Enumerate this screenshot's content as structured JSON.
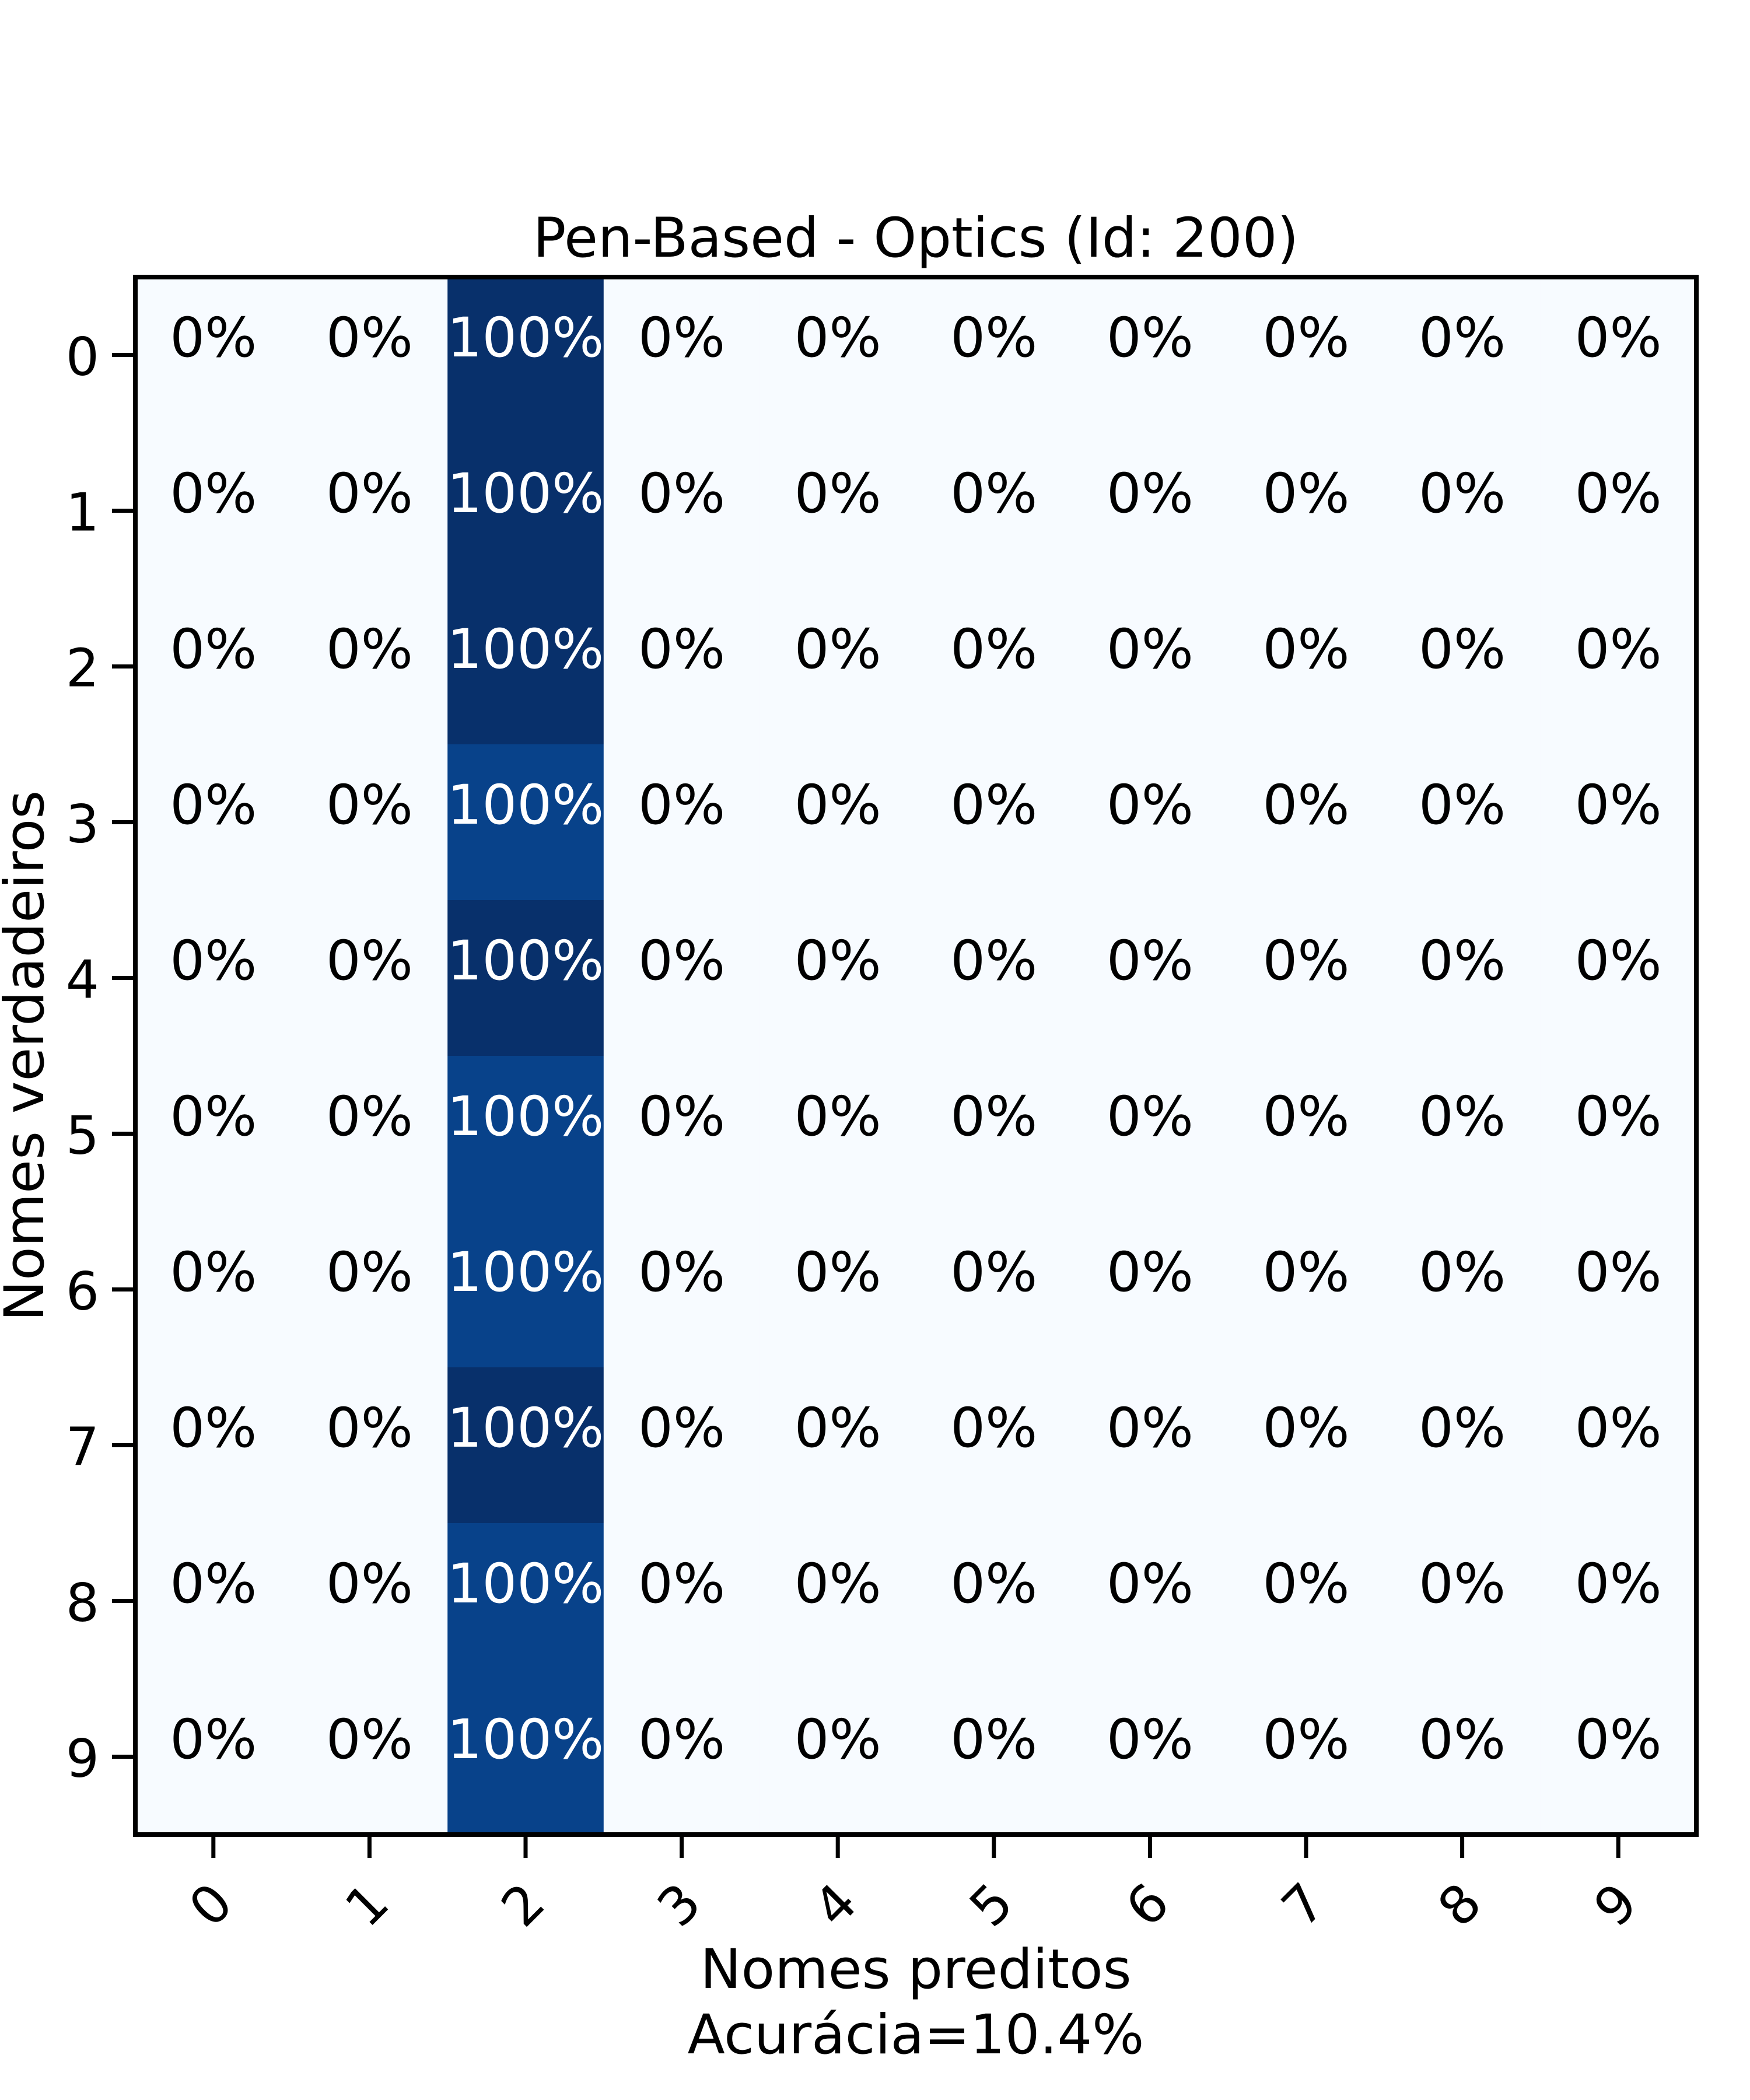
{
  "chart_data": {
    "type": "heatmap",
    "title": "Pen-Based - Optics (Id: 200)",
    "xlabel": "Nomes preditos",
    "subtitle": "Acurácia=10.4%",
    "ylabel": "Nomes verdadeiros",
    "x_categories": [
      "0",
      "1",
      "2",
      "3",
      "4",
      "5",
      "6",
      "7",
      "8",
      "9"
    ],
    "y_categories": [
      "0",
      "1",
      "2",
      "3",
      "4",
      "5",
      "6",
      "7",
      "8",
      "9"
    ],
    "values": [
      [
        0,
        0,
        100,
        0,
        0,
        0,
        0,
        0,
        0,
        0
      ],
      [
        0,
        0,
        100,
        0,
        0,
        0,
        0,
        0,
        0,
        0
      ],
      [
        0,
        0,
        100,
        0,
        0,
        0,
        0,
        0,
        0,
        0
      ],
      [
        0,
        0,
        100,
        0,
        0,
        0,
        0,
        0,
        0,
        0
      ],
      [
        0,
        0,
        100,
        0,
        0,
        0,
        0,
        0,
        0,
        0
      ],
      [
        0,
        0,
        100,
        0,
        0,
        0,
        0,
        0,
        0,
        0
      ],
      [
        0,
        0,
        100,
        0,
        0,
        0,
        0,
        0,
        0,
        0
      ],
      [
        0,
        0,
        100,
        0,
        0,
        0,
        0,
        0,
        0,
        0
      ],
      [
        0,
        0,
        100,
        0,
        0,
        0,
        0,
        0,
        0,
        0
      ],
      [
        0,
        0,
        100,
        0,
        0,
        0,
        0,
        0,
        0,
        0
      ]
    ],
    "cell_labels": [
      [
        "0%",
        "0%",
        "100%",
        "0%",
        "0%",
        "0%",
        "0%",
        "0%",
        "0%",
        "0%"
      ],
      [
        "0%",
        "0%",
        "100%",
        "0%",
        "0%",
        "0%",
        "0%",
        "0%",
        "0%",
        "0%"
      ],
      [
        "0%",
        "0%",
        "100%",
        "0%",
        "0%",
        "0%",
        "0%",
        "0%",
        "0%",
        "0%"
      ],
      [
        "0%",
        "0%",
        "100%",
        "0%",
        "0%",
        "0%",
        "0%",
        "0%",
        "0%",
        "0%"
      ],
      [
        "0%",
        "0%",
        "100%",
        "0%",
        "0%",
        "0%",
        "0%",
        "0%",
        "0%",
        "0%"
      ],
      [
        "0%",
        "0%",
        "100%",
        "0%",
        "0%",
        "0%",
        "0%",
        "0%",
        "0%",
        "0%"
      ],
      [
        "0%",
        "0%",
        "100%",
        "0%",
        "0%",
        "0%",
        "0%",
        "0%",
        "0%",
        "0%"
      ],
      [
        "0%",
        "0%",
        "100%",
        "0%",
        "0%",
        "0%",
        "0%",
        "0%",
        "0%",
        "0%"
      ],
      [
        "0%",
        "0%",
        "100%",
        "0%",
        "0%",
        "0%",
        "0%",
        "0%",
        "0%",
        "0%"
      ],
      [
        "0%",
        "0%",
        "100%",
        "0%",
        "0%",
        "0%",
        "0%",
        "0%",
        "0%",
        "0%"
      ]
    ],
    "cell_colors": [
      [
        "#f7fbff",
        "#f7fbff",
        "#08306b",
        "#f7fbff",
        "#f7fbff",
        "#f7fbff",
        "#f7fbff",
        "#f7fbff",
        "#f7fbff",
        "#f7fbff"
      ],
      [
        "#f7fbff",
        "#f7fbff",
        "#08306b",
        "#f7fbff",
        "#f7fbff",
        "#f7fbff",
        "#f7fbff",
        "#f7fbff",
        "#f7fbff",
        "#f7fbff"
      ],
      [
        "#f7fbff",
        "#f7fbff",
        "#08306b",
        "#f7fbff",
        "#f7fbff",
        "#f7fbff",
        "#f7fbff",
        "#f7fbff",
        "#f7fbff",
        "#f7fbff"
      ],
      [
        "#f7fbff",
        "#f7fbff",
        "#08428a",
        "#f7fbff",
        "#f7fbff",
        "#f7fbff",
        "#f7fbff",
        "#f7fbff",
        "#f7fbff",
        "#f7fbff"
      ],
      [
        "#f7fbff",
        "#f7fbff",
        "#08306b",
        "#f7fbff",
        "#f7fbff",
        "#f7fbff",
        "#f7fbff",
        "#f7fbff",
        "#f7fbff",
        "#f7fbff"
      ],
      [
        "#f7fbff",
        "#f7fbff",
        "#08428a",
        "#f7fbff",
        "#f7fbff",
        "#f7fbff",
        "#f7fbff",
        "#f7fbff",
        "#f7fbff",
        "#f7fbff"
      ],
      [
        "#f7fbff",
        "#f7fbff",
        "#08428a",
        "#f7fbff",
        "#f7fbff",
        "#f7fbff",
        "#f7fbff",
        "#f7fbff",
        "#f7fbff",
        "#f7fbff"
      ],
      [
        "#f7fbff",
        "#f7fbff",
        "#08306b",
        "#f7fbff",
        "#f7fbff",
        "#f7fbff",
        "#f7fbff",
        "#f7fbff",
        "#f7fbff",
        "#f7fbff"
      ],
      [
        "#f7fbff",
        "#f7fbff",
        "#08428a",
        "#f7fbff",
        "#f7fbff",
        "#f7fbff",
        "#f7fbff",
        "#f7fbff",
        "#f7fbff",
        "#f7fbff"
      ],
      [
        "#f7fbff",
        "#f7fbff",
        "#08428a",
        "#f7fbff",
        "#f7fbff",
        "#f7fbff",
        "#f7fbff",
        "#f7fbff",
        "#f7fbff",
        "#f7fbff"
      ]
    ],
    "colormap": "Blues",
    "grid": false,
    "colors": {
      "low": "#f7fbff",
      "high": "#08306b",
      "high_alt": "#08428a",
      "text_dark": "#000000",
      "text_light": "#ffffff"
    }
  }
}
